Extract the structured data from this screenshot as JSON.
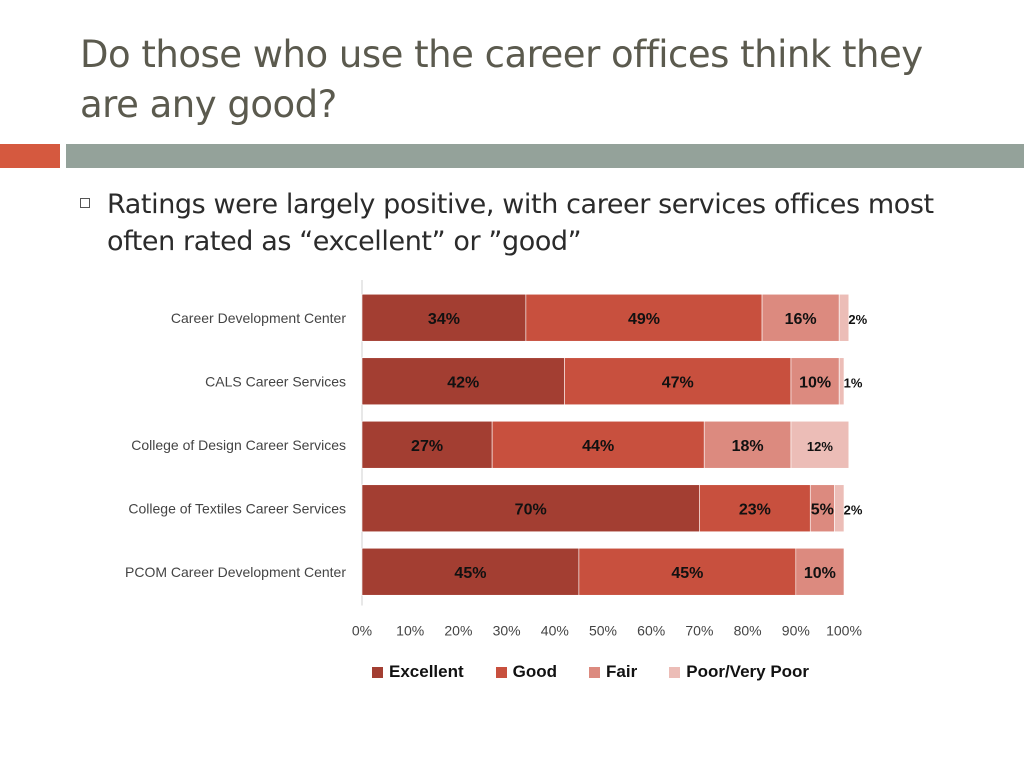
{
  "slide": {
    "title": "Do those who use the career offices think they are any good?",
    "bullet": "Ratings were largely positive, with career services offices most often rated as “excellent” or ”good”"
  },
  "colors": {
    "accent_left": "#d5593f",
    "accent_right": "#94a29a",
    "excellent": "#a33e32",
    "good": "#c8503e",
    "fair": "#dc8a7f",
    "poor": "#ecbdb7"
  },
  "chart_data": {
    "type": "bar",
    "orientation": "horizontal",
    "stacked": true,
    "categories": [
      "Career Development Center",
      "CALS Career Services",
      "College of Design Career Services",
      "College of Textiles Career Services",
      "PCOM Career Development Center"
    ],
    "series": [
      {
        "name": "Excellent",
        "values": [
          34,
          42,
          27,
          70,
          45
        ],
        "labels": [
          "34%",
          "42%",
          "27%",
          "70%",
          "45%"
        ]
      },
      {
        "name": "Good",
        "values": [
          49,
          47,
          44,
          23,
          45
        ],
        "labels": [
          "49%",
          "47%",
          "44%",
          "23%",
          "45%"
        ]
      },
      {
        "name": "Fair",
        "values": [
          16,
          10,
          18,
          5,
          10
        ],
        "labels": [
          "16%",
          "10%",
          "18%",
          "5%",
          "10%"
        ]
      },
      {
        "name": "Poor/Very Poor",
        "values": [
          2,
          1,
          12,
          2,
          0
        ],
        "labels": [
          "2%",
          "1%",
          "12%",
          "2%",
          ""
        ]
      }
    ],
    "xlim": [
      0,
      100
    ],
    "xticks": [
      "0%",
      "10%",
      "20%",
      "30%",
      "40%",
      "50%",
      "60%",
      "70%",
      "80%",
      "90%",
      "100%"
    ],
    "legend_position": "bottom",
    "grid": false
  }
}
